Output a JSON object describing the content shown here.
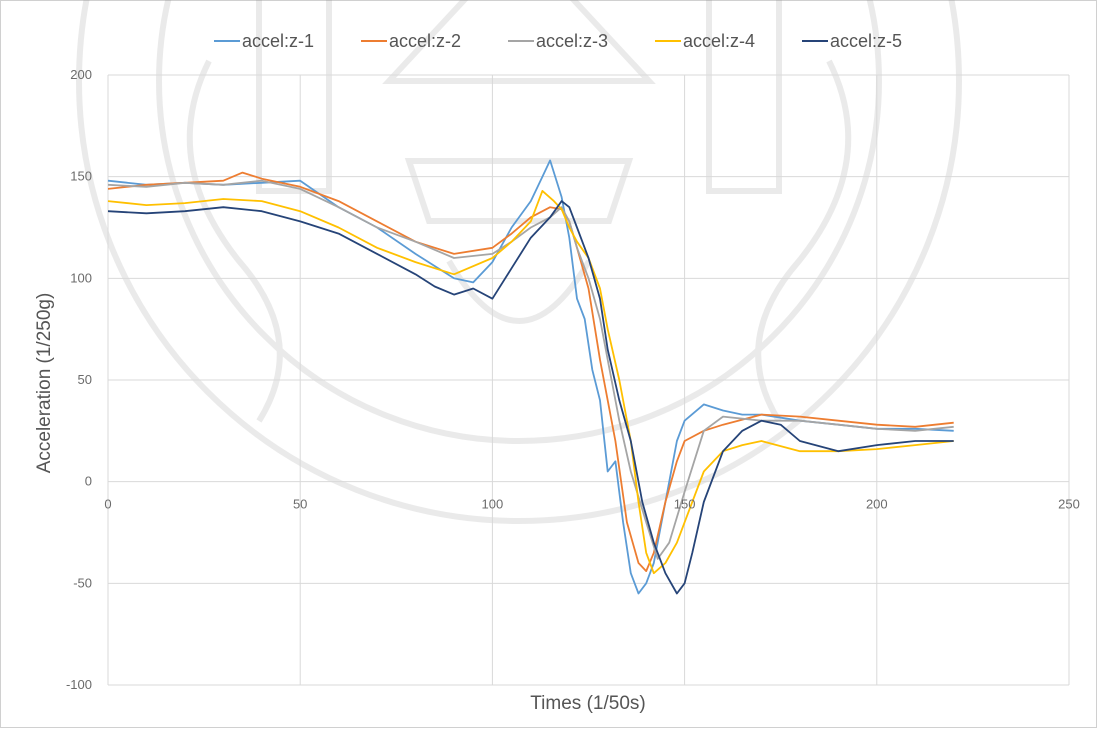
{
  "chart_data": {
    "type": "line",
    "title": "",
    "xlabel": "Times (1/50s)",
    "ylabel": "Acceleration (1/250g)",
    "xlim": [
      0,
      250
    ],
    "ylim": [
      -100,
      200
    ],
    "xticks": [
      0,
      50,
      100,
      150,
      200,
      250
    ],
    "yticks": [
      -100,
      -50,
      0,
      50,
      100,
      150,
      200
    ],
    "xtick_labels": [
      "0",
      "50",
      "100",
      "150",
      "200",
      "250"
    ],
    "ytick_labels": [
      "-100",
      "-50",
      "0",
      "50",
      "100",
      "150",
      "200"
    ],
    "grid": true,
    "legend_position": "top",
    "series": [
      {
        "name": "accel:z-1",
        "color": "#5b9bd5",
        "x": [
          0,
          10,
          20,
          30,
          40,
          50,
          60,
          70,
          80,
          90,
          95,
          100,
          105,
          110,
          113,
          115,
          118,
          120,
          122,
          124,
          126,
          128,
          130,
          132,
          134,
          136,
          138,
          140,
          142,
          145,
          148,
          150,
          155,
          160,
          165,
          170,
          180,
          190,
          200,
          210,
          220
        ],
        "y": [
          148,
          146,
          147,
          146,
          147,
          148,
          135,
          125,
          112,
          100,
          98,
          108,
          125,
          138,
          150,
          158,
          140,
          120,
          90,
          80,
          55,
          40,
          5,
          10,
          -20,
          -45,
          -55,
          -50,
          -40,
          -10,
          20,
          30,
          38,
          35,
          33,
          33,
          30,
          28,
          26,
          26,
          25
        ]
      },
      {
        "name": "accel:z-2",
        "color": "#ed7d31",
        "x": [
          0,
          10,
          20,
          30,
          35,
          40,
          50,
          60,
          70,
          80,
          90,
          100,
          105,
          110,
          115,
          118,
          120,
          122,
          125,
          128,
          130,
          132,
          135,
          138,
          140,
          142,
          145,
          148,
          150,
          155,
          160,
          170,
          180,
          190,
          200,
          210,
          220
        ],
        "y": [
          144,
          146,
          147,
          148,
          152,
          149,
          145,
          138,
          128,
          118,
          112,
          115,
          122,
          130,
          135,
          134,
          128,
          115,
          95,
          60,
          40,
          20,
          -20,
          -40,
          -44,
          -35,
          -10,
          10,
          20,
          25,
          28,
          33,
          32,
          30,
          28,
          27,
          29
        ]
      },
      {
        "name": "accel:z-3",
        "color": "#a5a5a5",
        "x": [
          0,
          10,
          20,
          30,
          40,
          50,
          60,
          70,
          80,
          90,
          100,
          105,
          110,
          115,
          118,
          120,
          122,
          125,
          128,
          130,
          133,
          136,
          140,
          143,
          146,
          150,
          155,
          160,
          170,
          180,
          190,
          200,
          210,
          220
        ],
        "y": [
          146,
          145,
          147,
          146,
          148,
          144,
          135,
          125,
          118,
          110,
          112,
          118,
          125,
          130,
          135,
          128,
          115,
          100,
          80,
          60,
          30,
          5,
          -20,
          -38,
          -30,
          -5,
          25,
          32,
          30,
          30,
          28,
          26,
          25,
          27
        ]
      },
      {
        "name": "accel:z-4",
        "color": "#ffc000",
        "x": [
          0,
          10,
          20,
          30,
          40,
          50,
          60,
          70,
          80,
          90,
          100,
          105,
          110,
          113,
          116,
          118,
          120,
          122,
          125,
          128,
          130,
          133,
          136,
          138,
          140,
          142,
          145,
          148,
          150,
          155,
          160,
          165,
          170,
          180,
          190,
          200,
          210,
          220
        ],
        "y": [
          138,
          136,
          137,
          139,
          138,
          133,
          125,
          115,
          108,
          102,
          110,
          118,
          128,
          143,
          138,
          134,
          125,
          118,
          110,
          95,
          75,
          50,
          20,
          -10,
          -35,
          -45,
          -40,
          -30,
          -20,
          5,
          15,
          18,
          20,
          15,
          15,
          16,
          18,
          20
        ]
      },
      {
        "name": "accel:z-5",
        "color": "#264478",
        "x": [
          0,
          10,
          20,
          30,
          40,
          50,
          60,
          70,
          80,
          85,
          90,
          95,
          100,
          105,
          110,
          115,
          118,
          120,
          122,
          125,
          128,
          130,
          133,
          136,
          139,
          142,
          145,
          148,
          150,
          152,
          155,
          160,
          165,
          170,
          175,
          180,
          190,
          200,
          210,
          220
        ],
        "y": [
          133,
          132,
          133,
          135,
          133,
          128,
          122,
          112,
          102,
          96,
          92,
          95,
          90,
          105,
          120,
          130,
          138,
          135,
          125,
          110,
          90,
          65,
          40,
          20,
          -10,
          -30,
          -45,
          -55,
          -50,
          -35,
          -10,
          15,
          25,
          30,
          28,
          20,
          15,
          18,
          20,
          20
        ]
      }
    ]
  }
}
